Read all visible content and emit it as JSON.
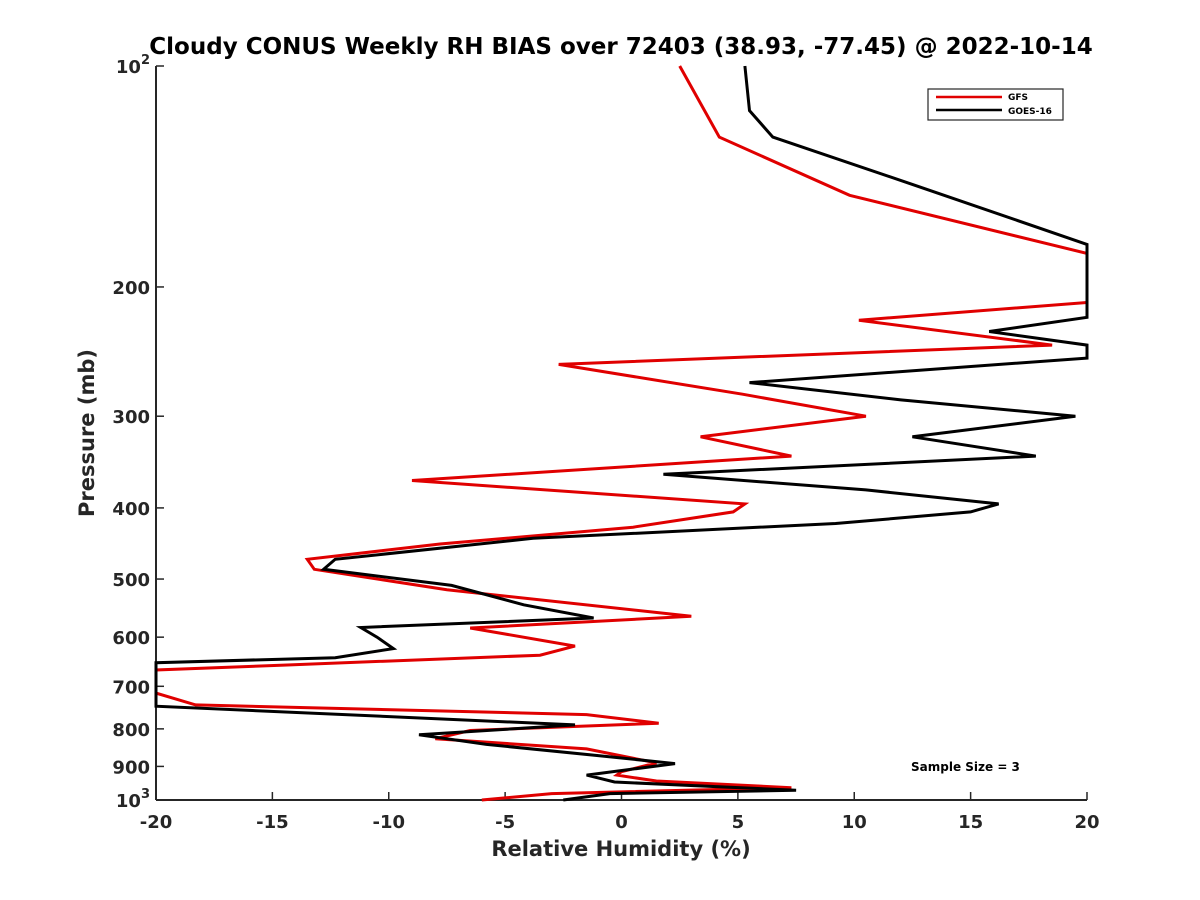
{
  "chart_data": {
    "type": "line",
    "title": "Cloudy CONUS Weekly RH BIAS over 72403 (38.93, -77.45) @ 2022-10-14",
    "xlabel": "Relative Humidity (%)",
    "ylabel": "Pressure (mb)",
    "xlim": [
      -20,
      20
    ],
    "ylim": [
      100,
      1000
    ],
    "yscale": "log",
    "y_reversed": true,
    "x_ticks": [
      "-20",
      "-15",
      "-10",
      "-5",
      "0",
      "5",
      "10",
      "15",
      "20"
    ],
    "y_ticks": [
      {
        "value": 100,
        "base": "10",
        "exp": "2"
      },
      {
        "value": 200,
        "base": "200",
        "exp": ""
      },
      {
        "value": 300,
        "base": "300",
        "exp": ""
      },
      {
        "value": 400,
        "base": "400",
        "exp": ""
      },
      {
        "value": 500,
        "base": "500",
        "exp": ""
      },
      {
        "value": 600,
        "base": "600",
        "exp": ""
      },
      {
        "value": 700,
        "base": "700",
        "exp": ""
      },
      {
        "value": 800,
        "base": "800",
        "exp": ""
      },
      {
        "value": 900,
        "base": "900",
        "exp": ""
      },
      {
        "value": 1000,
        "base": "10",
        "exp": "3"
      }
    ],
    "grid": false,
    "legend_position": "top-right",
    "annotation": "Sample Size = 3",
    "series": [
      {
        "name": "GFS",
        "color": "#e00000",
        "points": [
          [
            2.5,
            100
          ],
          [
            4.2,
            125
          ],
          [
            9.8,
            150
          ],
          [
            20,
            180
          ],
          [
            20,
            210
          ],
          [
            10.2,
            222
          ],
          [
            18.5,
            240
          ],
          [
            -2.7,
            255
          ],
          [
            5.2,
            280
          ],
          [
            10.5,
            300
          ],
          [
            3.4,
            320
          ],
          [
            7.3,
            340
          ],
          [
            -9.0,
            367
          ],
          [
            5.3,
            395
          ],
          [
            4.8,
            405
          ],
          [
            0.5,
            425
          ],
          [
            -7.8,
            448
          ],
          [
            -13.5,
            470
          ],
          [
            -13.2,
            485
          ],
          [
            -7.5,
            517
          ],
          [
            3.0,
            562
          ],
          [
            -6.5,
            583
          ],
          [
            -2.0,
            617
          ],
          [
            -3.5,
            635
          ],
          [
            -14.5,
            655
          ],
          [
            -20,
            665
          ],
          [
            -20,
            715
          ],
          [
            -18.3,
            742
          ],
          [
            -1.5,
            765
          ],
          [
            1.6,
            786
          ],
          [
            -6.5,
            804
          ],
          [
            -8.0,
            825
          ],
          [
            -1.5,
            852
          ],
          [
            1.5,
            890
          ],
          [
            0.0,
            915
          ],
          [
            -0.2,
            925
          ],
          [
            1.5,
            942
          ],
          [
            7.3,
            962
          ],
          [
            -3.0,
            980
          ],
          [
            -6.0,
            1000
          ]
        ]
      },
      {
        "name": "GOES-16",
        "color": "#000000",
        "points": [
          [
            5.3,
            100
          ],
          [
            5.5,
            115
          ],
          [
            6.5,
            125
          ],
          [
            12.5,
            145
          ],
          [
            20,
            175
          ],
          [
            20,
            220
          ],
          [
            15.8,
            230
          ],
          [
            20,
            240
          ],
          [
            20,
            250
          ],
          [
            5.5,
            270
          ],
          [
            12.0,
            285
          ],
          [
            19.5,
            300
          ],
          [
            12.5,
            320
          ],
          [
            17.8,
            340
          ],
          [
            1.8,
            360
          ],
          [
            10.5,
            378
          ],
          [
            16.2,
            395
          ],
          [
            15.0,
            405
          ],
          [
            9.2,
            420
          ],
          [
            -3.8,
            440
          ],
          [
            -12.3,
            470
          ],
          [
            -12.8,
            485
          ],
          [
            -7.3,
            510
          ],
          [
            -4.2,
            542
          ],
          [
            -1.2,
            565
          ],
          [
            -11.2,
            582
          ],
          [
            -10.5,
            600
          ],
          [
            -9.8,
            622
          ],
          [
            -12.3,
            640
          ],
          [
            -20,
            650
          ],
          [
            -20,
            720
          ],
          [
            -20,
            745
          ],
          [
            -2.0,
            790
          ],
          [
            -8.7,
            815
          ],
          [
            -5.8,
            840
          ],
          [
            -1.0,
            870
          ],
          [
            2.3,
            892
          ],
          [
            -1.5,
            925
          ],
          [
            -0.3,
            945
          ],
          [
            7.5,
            970
          ],
          [
            -0.5,
            980
          ],
          [
            -2.5,
            1000
          ]
        ]
      }
    ]
  }
}
